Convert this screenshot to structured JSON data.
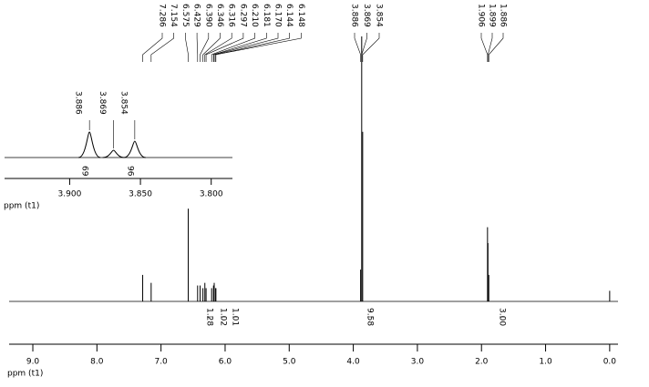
{
  "chart_data": {
    "type": "nmr",
    "xlabel": "ppm (t1)",
    "xlim": [
      9.37,
      -0.13
    ],
    "xticks": [
      {
        "value": 9,
        "label": "9.0"
      },
      {
        "value": 8,
        "label": "8.0"
      },
      {
        "value": 7,
        "label": "7.0"
      },
      {
        "value": 6,
        "label": "6.0"
      },
      {
        "value": 5,
        "label": "5.0"
      },
      {
        "value": 4,
        "label": "4.0"
      },
      {
        "value": 3,
        "label": "3.0"
      },
      {
        "value": 2,
        "label": "2.0"
      },
      {
        "value": 1,
        "label": "1.0"
      },
      {
        "value": 0,
        "label": "0.0"
      }
    ],
    "peak_groups": [
      [
        {
          "ppm": 7.286,
          "height": 10
        },
        {
          "ppm": 7.154,
          "height": 7
        },
        {
          "ppm": 6.575,
          "height": 35
        },
        {
          "ppm": 6.429,
          "height": 6
        },
        {
          "ppm": 6.39,
          "label": "6.390",
          "height": 6
        },
        {
          "ppm": 6.346,
          "height": 5
        },
        {
          "ppm": 6.316,
          "height": 7
        },
        {
          "ppm": 6.297,
          "height": 5
        },
        {
          "ppm": 6.21,
          "label": "6.210",
          "height": 5
        },
        {
          "ppm": 6.181,
          "height": 6
        },
        {
          "ppm": 6.17,
          "label": "6.170",
          "height": 7
        },
        {
          "ppm": 6.144,
          "height": 5
        },
        {
          "ppm": 6.148,
          "height": 5
        }
      ],
      [
        {
          "ppm": 3.886,
          "height": 12
        },
        {
          "ppm": 3.869,
          "height": 100
        },
        {
          "ppm": 3.854,
          "height": 64
        }
      ],
      [
        {
          "ppm": 1.906,
          "height": 28
        },
        {
          "ppm": 1.899,
          "height": 22
        },
        {
          "ppm": 1.886,
          "height": 10
        }
      ]
    ],
    "unlabeled_peaks": [
      {
        "ppm": 0.0,
        "height": 4
      }
    ],
    "integrals": [
      1.28,
      1.02,
      1.01,
      9.58,
      {
        "value": 3,
        "label": "3.00"
      }
    ],
    "inset": {
      "xlabel": "ppm (t1)",
      "xlim": [
        3.946,
        3.785
      ],
      "xticks": [
        {
          "value": 3.9,
          "label": "3.900"
        },
        {
          "value": 3.85,
          "label": "3.850"
        },
        {
          "value": 3.8,
          "label": "3.800"
        }
      ],
      "peaks": [
        {
          "ppm": 3.886,
          "height": 28
        },
        {
          "ppm": 3.869,
          "height": 8
        },
        {
          "ppm": 3.854,
          "height": 18
        }
      ],
      "integrals": [
        69,
        96
      ]
    }
  }
}
